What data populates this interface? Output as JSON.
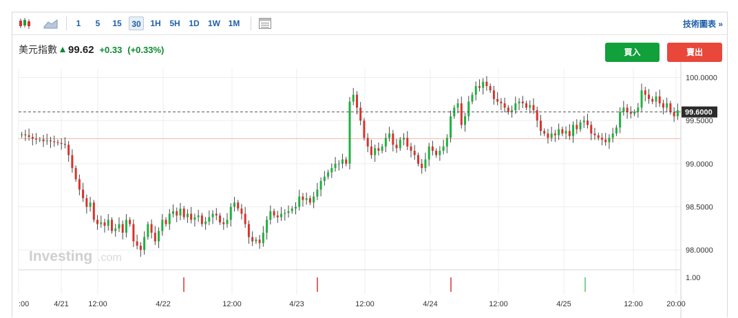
{
  "toolbar": {
    "intervals": [
      "1",
      "5",
      "15",
      "30",
      "1H",
      "5H",
      "1D",
      "1W",
      "1M"
    ],
    "active_interval": "30",
    "tech_chart_label": "技術圖表 »"
  },
  "quote": {
    "name": "美元指數",
    "price": "99.62",
    "change": "+0.33",
    "change_pct": "(+0.33%)",
    "up_color": "#0a8a2e"
  },
  "buttons": {
    "buy": "買入",
    "sell": "賣出"
  },
  "watermark": {
    "brand": "Investing",
    "suffix": ".com"
  },
  "chart_data": {
    "type": "candlestick",
    "y_ticks": [
      "100.0000",
      "99.5000",
      "99.0000",
      "98.5000",
      "98.0000"
    ],
    "y_tick_values": [
      100.0,
      99.5,
      99.0,
      98.5,
      98.0
    ],
    "ylim": [
      97.85,
      100.1
    ],
    "current_price_label": "99.6000",
    "current_price": 99.6,
    "reference_line": 99.29,
    "x_labels": [
      ":00",
      "4/21",
      "12:00",
      "4/22",
      "12:00",
      "4/23",
      "12:00",
      "4/24",
      "12:00",
      "4/25",
      "12:00",
      "20:00"
    ],
    "closes": [
      99.34,
      99.33,
      99.31,
      99.29,
      99.28,
      99.28,
      99.26,
      99.27,
      99.26,
      99.25,
      99.24,
      99.23,
      99.22,
      99.1,
      98.95,
      98.82,
      98.7,
      98.6,
      98.5,
      98.55,
      98.35,
      98.3,
      98.32,
      98.28,
      98.35,
      98.22,
      98.25,
      98.3,
      98.2,
      98.35,
      98.3,
      98.1,
      98.05,
      98.0,
      98.15,
      98.3,
      98.2,
      98.1,
      98.22,
      98.35,
      98.3,
      98.42,
      98.45,
      98.4,
      98.48,
      98.38,
      98.42,
      98.35,
      98.38,
      98.4,
      98.3,
      98.33,
      98.38,
      98.42,
      98.4,
      98.32,
      98.3,
      98.35,
      98.5,
      98.55,
      98.48,
      98.42,
      98.3,
      98.15,
      98.1,
      98.12,
      98.08,
      98.2,
      98.35,
      98.45,
      98.4,
      98.38,
      98.42,
      98.43,
      98.45,
      98.48,
      98.5,
      98.62,
      98.58,
      98.6,
      98.55,
      98.62,
      98.7,
      98.8,
      98.85,
      98.9,
      98.95,
      99.0,
      99.0,
      99.05,
      99.0,
      99.72,
      99.8,
      99.65,
      99.5,
      99.3,
      99.2,
      99.1,
      99.18,
      99.15,
      99.2,
      99.3,
      99.35,
      99.22,
      99.18,
      99.28,
      99.3,
      99.2,
      99.15,
      99.1,
      99.0,
      98.95,
      99.05,
      99.2,
      99.15,
      99.1,
      99.15,
      99.2,
      99.3,
      99.55,
      99.65,
      99.7,
      99.45,
      99.55,
      99.72,
      99.8,
      99.9,
      99.88,
      99.95,
      99.9,
      99.85,
      99.75,
      99.72,
      99.7,
      99.65,
      99.6,
      99.62,
      99.7,
      99.72,
      99.7,
      99.65,
      99.68,
      99.62,
      99.5,
      99.38,
      99.35,
      99.3,
      99.35,
      99.33,
      99.4,
      99.35,
      99.38,
      99.32,
      99.45,
      99.4,
      99.48,
      99.5,
      99.45,
      99.35,
      99.33,
      99.3,
      99.28,
      99.25,
      99.3,
      99.35,
      99.42,
      99.6,
      99.65,
      99.6,
      99.58,
      99.6,
      99.65,
      99.85,
      99.8,
      99.75,
      99.72,
      99.78,
      99.7,
      99.65,
      99.7,
      99.6,
      99.55,
      99.62
    ]
  }
}
